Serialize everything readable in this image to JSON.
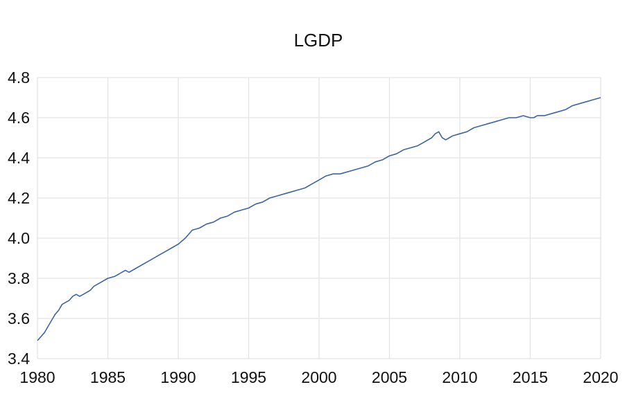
{
  "chart_data": {
    "type": "line",
    "title": "LGDP",
    "xlabel": "",
    "ylabel": "",
    "xlim": [
      1980,
      2020
    ],
    "ylim": [
      3.4,
      4.8
    ],
    "x_ticks": [
      "1980",
      "1985",
      "1990",
      "1995",
      "2000",
      "2005",
      "2010",
      "2015",
      "2020"
    ],
    "y_ticks": [
      "3.4",
      "3.6",
      "3.8",
      "4.0",
      "4.2",
      "4.4",
      "4.6",
      "4.8"
    ],
    "grid": true,
    "legend": "none",
    "line_color": "#3a64a4",
    "series": [
      {
        "x": [
          1980.0,
          1980.25,
          1980.5,
          1980.75,
          1981.0,
          1981.25,
          1981.5,
          1981.75,
          1982.0,
          1982.25,
          1982.5,
          1982.75,
          1983.0,
          1983.25,
          1983.5,
          1983.75,
          1984.0,
          1984.5,
          1985.0,
          1985.5,
          1986.0,
          1986.25,
          1986.5,
          1987.0,
          1987.5,
          1988.0,
          1988.5,
          1989.0,
          1989.5,
          1990.0,
          1990.5,
          1990.75,
          1991.0,
          1991.5,
          1992.0,
          1992.5,
          1993.0,
          1993.5,
          1994.0,
          1994.5,
          1995.0,
          1995.5,
          1996.0,
          1996.5,
          1997.0,
          1997.5,
          1998.0,
          1998.5,
          1999.0,
          1999.5,
          2000.0,
          2000.5,
          2001.0,
          2001.5,
          2002.0,
          2002.5,
          2003.0,
          2003.5,
          2004.0,
          2004.5,
          2005.0,
          2005.5,
          2006.0,
          2006.5,
          2007.0,
          2007.5,
          2008.0,
          2008.25,
          2008.5,
          2008.75,
          2009.0,
          2009.25,
          2009.5,
          2010.0,
          2010.5,
          2011.0,
          2011.5,
          2012.0,
          2012.5,
          2013.0,
          2013.5,
          2014.0,
          2014.5,
          2015.0,
          2015.25,
          2015.5,
          2016.0,
          2016.5,
          2017.0,
          2017.5,
          2018.0,
          2018.5,
          2019.0,
          2019.5,
          2020.0
        ],
        "values": [
          3.49,
          3.51,
          3.53,
          3.56,
          3.59,
          3.62,
          3.64,
          3.67,
          3.68,
          3.69,
          3.71,
          3.72,
          3.71,
          3.72,
          3.73,
          3.74,
          3.76,
          3.78,
          3.8,
          3.81,
          3.83,
          3.84,
          3.83,
          3.85,
          3.87,
          3.89,
          3.91,
          3.93,
          3.95,
          3.97,
          4.0,
          4.02,
          4.04,
          4.05,
          4.07,
          4.08,
          4.1,
          4.11,
          4.13,
          4.14,
          4.15,
          4.17,
          4.18,
          4.2,
          4.21,
          4.22,
          4.23,
          4.24,
          4.25,
          4.27,
          4.29,
          4.31,
          4.32,
          4.32,
          4.33,
          4.34,
          4.35,
          4.36,
          4.38,
          4.39,
          4.41,
          4.42,
          4.44,
          4.45,
          4.46,
          4.48,
          4.5,
          4.52,
          4.53,
          4.5,
          4.49,
          4.5,
          4.51,
          4.52,
          4.53,
          4.55,
          4.56,
          4.57,
          4.58,
          4.59,
          4.6,
          4.6,
          4.61,
          4.6,
          4.6,
          4.61,
          4.61,
          4.62,
          4.63,
          4.64,
          4.66,
          4.67,
          4.68,
          4.69,
          4.7
        ]
      }
    ]
  }
}
